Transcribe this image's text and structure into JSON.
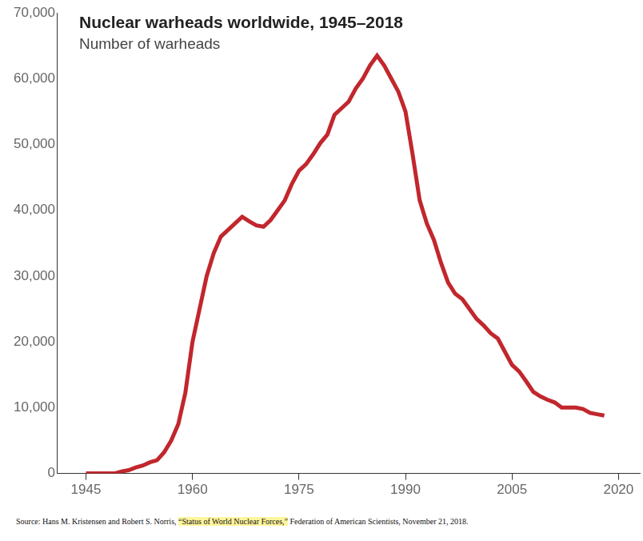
{
  "chart_data": {
    "type": "line",
    "title": "Nuclear warheads worldwide, 1945–2018",
    "subtitle": "Number of warheads",
    "source": [
      "Source: Hans M. Kristensen and Robert S. Norris, ",
      "“Status of World Nuclear Forces,”",
      " Federation of American Scientists, November 21, 2018."
    ],
    "color": "#c1272d",
    "grid": false,
    "x": [
      1945,
      1946,
      1947,
      1948,
      1949,
      1950,
      1951,
      1952,
      1953,
      1954,
      1955,
      1956,
      1957,
      1958,
      1959,
      1960,
      1961,
      1962,
      1963,
      1964,
      1965,
      1966,
      1967,
      1968,
      1969,
      1970,
      1971,
      1972,
      1973,
      1974,
      1975,
      1976,
      1977,
      1978,
      1979,
      1980,
      1981,
      1982,
      1983,
      1984,
      1985,
      1986,
      1987,
      1988,
      1989,
      1990,
      1991,
      1992,
      1993,
      1994,
      1995,
      1996,
      1997,
      1998,
      1999,
      2000,
      2001,
      2002,
      2003,
      2004,
      2005,
      2006,
      2007,
      2008,
      2009,
      2010,
      2011,
      2012,
      2013,
      2014,
      2015,
      2016,
      2017,
      2018
    ],
    "values": [
      0,
      0,
      0,
      0,
      0,
      300,
      500,
      900,
      1200,
      1700,
      2000,
      3200,
      5000,
      7500,
      12300,
      20000,
      25000,
      30000,
      33500,
      36000,
      37000,
      38000,
      39000,
      38300,
      37700,
      37500,
      38500,
      40000,
      41500,
      44000,
      46000,
      47000,
      48500,
      50200,
      51500,
      54500,
      55500,
      56500,
      58500,
      60000,
      62000,
      63500,
      62000,
      60000,
      58000,
      55000,
      48500,
      41500,
      38000,
      35500,
      32000,
      29000,
      27300,
      26500,
      25000,
      23500,
      22500,
      21300,
      20500,
      18500,
      16500,
      15500,
      14000,
      12400,
      11700,
      11200,
      10800,
      10000,
      10000,
      10000,
      9800,
      9200,
      9000,
      8800
    ],
    "xlim": [
      1941,
      2023
    ],
    "xticks": [
      1945,
      1960,
      1975,
      1990,
      2005,
      2020
    ],
    "ylim": [
      0,
      70000
    ],
    "yticks": [
      0,
      {
        "value": 10000,
        "label": "10,000"
      },
      {
        "value": 20000,
        "label": "20,000"
      },
      {
        "value": 30000,
        "label": "30,000"
      },
      {
        "value": 40000,
        "label": "40,000"
      },
      {
        "value": 50000,
        "label": "50,000"
      },
      {
        "value": 60000,
        "label": "60,000"
      },
      {
        "value": 70000,
        "label": "70,000"
      }
    ]
  }
}
